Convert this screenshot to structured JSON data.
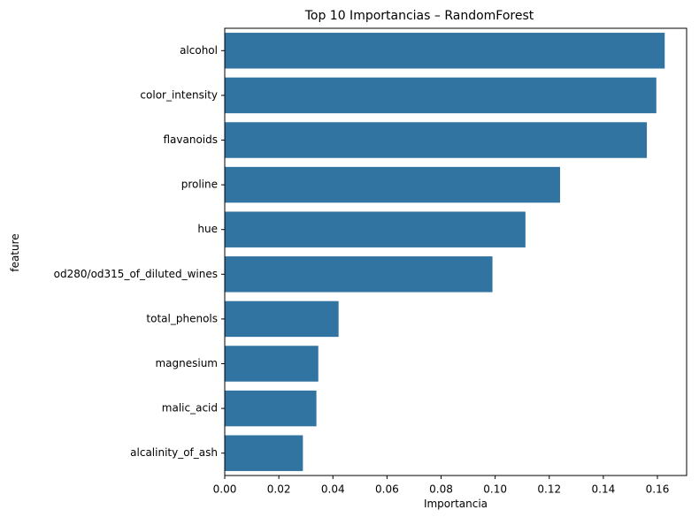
{
  "chart_data": {
    "type": "bar",
    "orientation": "horizontal",
    "title": "Top 10 Importancias – RandomForest",
    "xlabel": "Importancia",
    "ylabel": "feature",
    "categories": [
      "alcohol",
      "color_intensity",
      "flavanoids",
      "proline",
      "hue",
      "od280/od315_of_diluted_wines",
      "total_phenols",
      "magnesium",
      "malic_acid",
      "alcalinity_of_ash"
    ],
    "values": [
      0.1627,
      0.1596,
      0.1561,
      0.124,
      0.1112,
      0.099,
      0.0421,
      0.0346,
      0.0339,
      0.0289
    ],
    "xlim": [
      0,
      0.1708
    ],
    "xticks": [
      0.0,
      0.02,
      0.04,
      0.06,
      0.08,
      0.1,
      0.12,
      0.14,
      0.16
    ],
    "xtick_labels": [
      "0.00",
      "0.02",
      "0.04",
      "0.06",
      "0.08",
      "0.10",
      "0.12",
      "0.14",
      "0.16"
    ],
    "grid": false,
    "bar_color": "#3274a1"
  }
}
